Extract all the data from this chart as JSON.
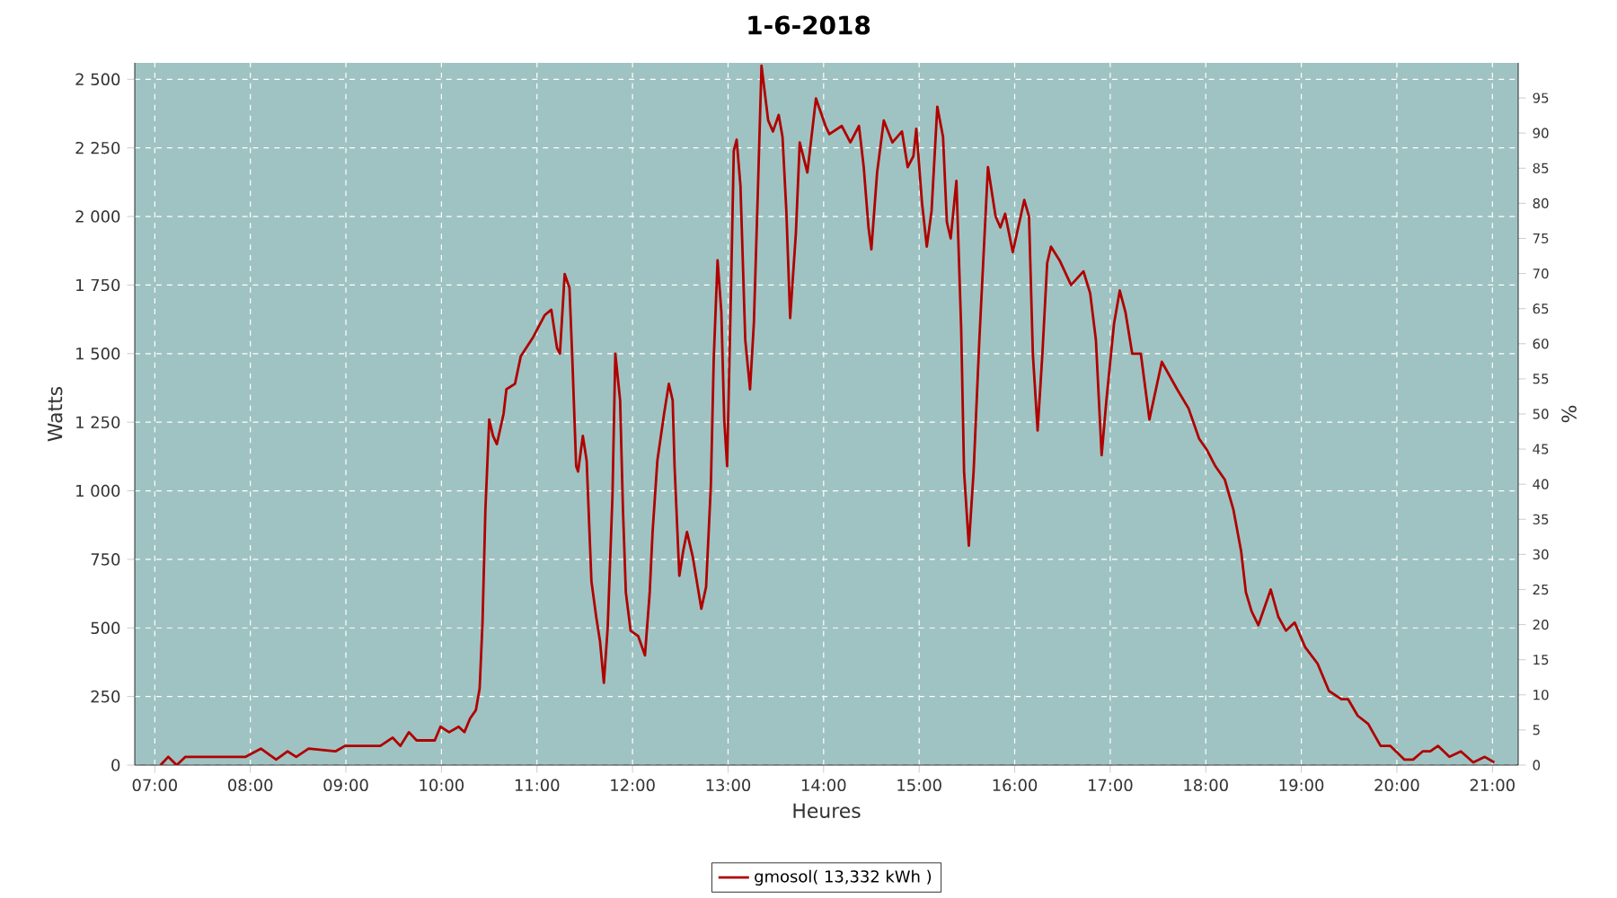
{
  "chart_data": {
    "type": "line",
    "title": "1-6-2018",
    "xlabel": "Heures",
    "ylabel": "Watts",
    "y2label": "%",
    "x": [
      7.06,
      7.14,
      7.23,
      7.32,
      7.95,
      8.11,
      8.27,
      8.39,
      8.48,
      8.61,
      8.89,
      8.99,
      9.36,
      9.49,
      9.57,
      9.66,
      9.74,
      9.93,
      9.99,
      10.08,
      10.18,
      10.24,
      10.3,
      10.36,
      10.4,
      10.43,
      10.46,
      10.5,
      10.54,
      10.58,
      10.65,
      10.68,
      10.77,
      10.83,
      10.96,
      11.08,
      11.15,
      11.21,
      11.24,
      11.29,
      11.34,
      11.37,
      11.41,
      11.43,
      11.48,
      11.52,
      11.57,
      11.62,
      11.66,
      11.7,
      11.74,
      11.79,
      11.82,
      11.87,
      11.9,
      11.93,
      11.98,
      12.06,
      12.13,
      12.18,
      12.21,
      12.26,
      12.33,
      12.38,
      12.42,
      12.44,
      12.49,
      12.53,
      12.57,
      12.63,
      12.72,
      12.77,
      12.82,
      12.85,
      12.89,
      12.93,
      12.96,
      12.99,
      13.03,
      13.06,
      13.09,
      13.13,
      13.18,
      13.23,
      13.27,
      13.31,
      13.35,
      13.42,
      13.47,
      13.53,
      13.57,
      13.61,
      13.65,
      13.71,
      13.75,
      13.83,
      13.92,
      14.02,
      14.06,
      14.19,
      14.28,
      14.37,
      14.42,
      14.47,
      14.5,
      14.56,
      14.63,
      14.72,
      14.82,
      14.88,
      14.94,
      14.97,
      15.03,
      15.08,
      15.13,
      15.19,
      15.25,
      15.29,
      15.33,
      15.39,
      15.44,
      15.47,
      15.52,
      15.57,
      15.63,
      15.67,
      15.72,
      15.8,
      15.85,
      15.9,
      15.98,
      16.1,
      16.15,
      16.19,
      16.24,
      16.29,
      16.34,
      16.38,
      16.47,
      16.59,
      16.72,
      16.79,
      16.85,
      16.91,
      16.96,
      17.04,
      17.1,
      17.16,
      17.23,
      17.32,
      17.41,
      17.54,
      17.7,
      17.82,
      17.93,
      18.01,
      18.1,
      18.2,
      18.29,
      18.37,
      18.42,
      18.48,
      18.55,
      18.68,
      18.76,
      18.84,
      18.93,
      19.04,
      19.17,
      19.29,
      19.42,
      19.49,
      19.59,
      19.7,
      19.83,
      19.93,
      20.08,
      20.17,
      20.27,
      20.35,
      20.43,
      20.55,
      20.67,
      20.8,
      20.92,
      21.02
    ],
    "series": [
      {
        "name": "gmosol( 13,332 kWh )",
        "color": "#b00000",
        "values": [
          0,
          30,
          0,
          30,
          30,
          60,
          20,
          50,
          30,
          60,
          50,
          70,
          70,
          100,
          70,
          120,
          90,
          90,
          140,
          120,
          140,
          120,
          170,
          200,
          280,
          520,
          930,
          1260,
          1200,
          1170,
          1280,
          1370,
          1390,
          1490,
          1560,
          1640,
          1660,
          1520,
          1500,
          1790,
          1740,
          1480,
          1090,
          1070,
          1200,
          1110,
          670,
          540,
          450,
          300,
          500,
          980,
          1500,
          1330,
          930,
          630,
          490,
          470,
          400,
          630,
          850,
          1110,
          1280,
          1390,
          1330,
          1090,
          690,
          780,
          850,
          760,
          570,
          650,
          1020,
          1480,
          1840,
          1650,
          1260,
          1090,
          1720,
          2240,
          2280,
          2110,
          1550,
          1370,
          1610,
          2070,
          2550,
          2350,
          2310,
          2370,
          2290,
          2020,
          1630,
          1940,
          2270,
          2160,
          2430,
          2330,
          2300,
          2330,
          2270,
          2330,
          2180,
          1960,
          1880,
          2160,
          2350,
          2270,
          2310,
          2180,
          2220,
          2320,
          2050,
          1890,
          2020,
          2400,
          2290,
          1980,
          1920,
          2130,
          1590,
          1070,
          800,
          1070,
          1550,
          1830,
          2180,
          2000,
          1960,
          2010,
          1870,
          2060,
          2000,
          1500,
          1220,
          1500,
          1830,
          1890,
          1840,
          1750,
          1800,
          1720,
          1550,
          1130,
          1330,
          1610,
          1730,
          1650,
          1500,
          1500,
          1260,
          1470,
          1370,
          1300,
          1190,
          1150,
          1090,
          1040,
          930,
          780,
          630,
          560,
          510,
          640,
          540,
          490,
          520,
          430,
          370,
          270,
          240,
          240,
          180,
          150,
          70,
          70,
          20,
          20,
          50,
          50,
          70,
          30,
          50,
          10,
          30,
          10
        ]
      }
    ],
    "xlim": [
      6.79,
      21.27
    ],
    "xticks": [
      {
        "value": 7,
        "label": "07:00"
      },
      {
        "value": 8,
        "label": "08:00"
      },
      {
        "value": 9,
        "label": "09:00"
      },
      {
        "value": 10,
        "label": "10:00"
      },
      {
        "value": 11,
        "label": "11:00"
      },
      {
        "value": 12,
        "label": "12:00"
      },
      {
        "value": 13,
        "label": "13:00"
      },
      {
        "value": 14,
        "label": "14:00"
      },
      {
        "value": 15,
        "label": "15:00"
      },
      {
        "value": 16,
        "label": "16:00"
      },
      {
        "value": 17,
        "label": "17:00"
      },
      {
        "value": 18,
        "label": "18:00"
      },
      {
        "value": 19,
        "label": "19:00"
      },
      {
        "value": 20,
        "label": "20:00"
      },
      {
        "value": 21,
        "label": "21:00"
      }
    ],
    "ylim": [
      0,
      2560
    ],
    "yticks": [
      0,
      250,
      500,
      750,
      {
        "value": 1000,
        "label": "1 000"
      },
      {
        "value": 1250,
        "label": "1 250"
      },
      {
        "value": 1500,
        "label": "1 500"
      },
      {
        "value": 1750,
        "label": "1 750"
      },
      {
        "value": 2000,
        "label": "2 000"
      },
      {
        "value": 2250,
        "label": "2 250"
      },
      {
        "value": 2500,
        "label": "2 500"
      }
    ],
    "y2lim": [
      0,
      100
    ],
    "y2ticks": [
      0,
      5,
      10,
      15,
      20,
      25,
      30,
      35,
      40,
      45,
      50,
      55,
      60,
      65,
      70,
      75,
      80,
      85,
      90,
      95
    ],
    "grid": true,
    "legend": "bottom",
    "line_style": "solid",
    "marker": "none"
  }
}
